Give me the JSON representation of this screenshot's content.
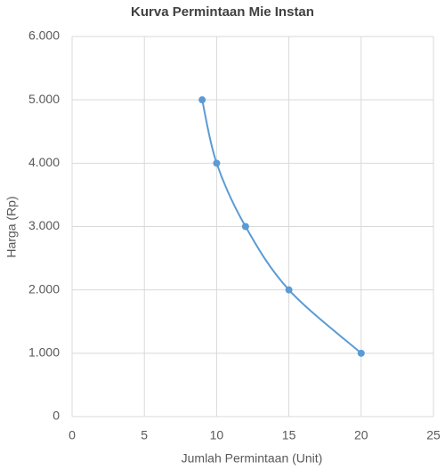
{
  "chart_data": {
    "type": "scatter",
    "smooth": true,
    "title": "Kurva Permintaan Mie Instan",
    "x_label": "Jumlah Permintaan (Unit)",
    "y_label": "Harga (Rp)",
    "x": [
      9,
      10,
      12,
      15,
      20
    ],
    "values": [
      5000,
      4000,
      3000,
      2000,
      1000
    ],
    "color": "#5b9bd5",
    "xlim": [
      0,
      25
    ],
    "xticks": [
      0,
      5,
      10,
      15,
      20,
      25
    ],
    "ylim": [
      0,
      6000
    ],
    "yticks": [
      0,
      {
        "value": 1000,
        "label": "1.000"
      },
      {
        "value": 2000,
        "label": "2.000"
      },
      {
        "value": 3000,
        "label": "3.000"
      },
      {
        "value": 4000,
        "label": "4.000"
      },
      {
        "value": 5000,
        "label": "5.000"
      },
      {
        "value": 6000,
        "label": "6.000"
      }
    ],
    "grid": true
  }
}
